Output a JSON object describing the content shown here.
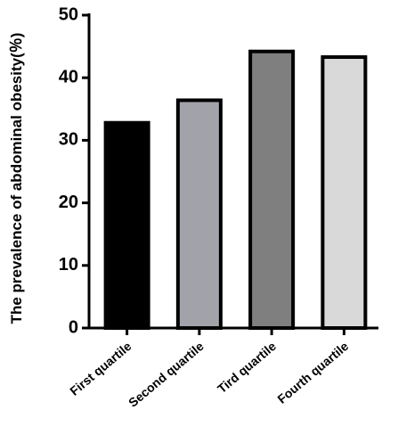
{
  "chart_data": {
    "type": "bar",
    "y_label": "The prevalence of abdominal obesity(％)",
    "categories": [
      "First quartile",
      "Second quartile",
      "Tird quartile",
      "Fourth quartile"
    ],
    "values": [
      32.8,
      36.4,
      44.2,
      43.3
    ],
    "colors": [
      "#000000",
      "#a2a2aa",
      "#7f7f7f",
      "#d9d9d9"
    ],
    "ylim": [
      0,
      50
    ],
    "yticks": [
      0,
      10,
      20,
      30,
      40,
      50
    ],
    "grid": false
  }
}
